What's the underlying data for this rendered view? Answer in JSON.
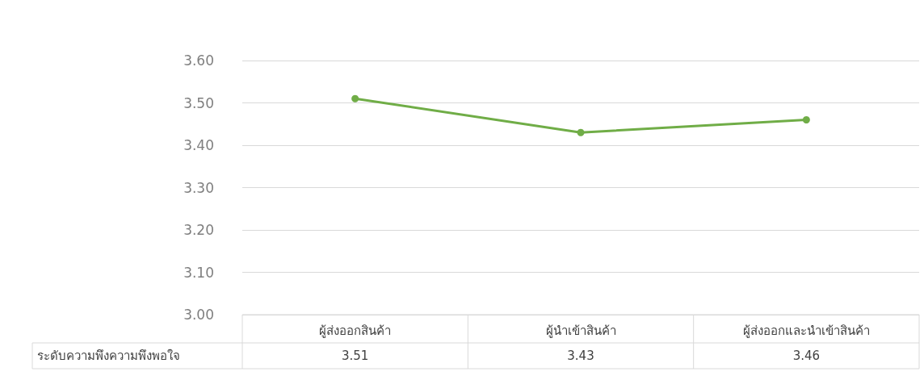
{
  "chart_data": {
    "type": "line",
    "categories": [
      "ผู้ส่งออกสินค้า",
      "ผู้นำเข้าสินค้า",
      "ผู้ส่งออกและนำเข้าสินค้า"
    ],
    "series": [
      {
        "name": "ระดับความพึงความพึงพอใจ",
        "color": "#70ad47",
        "values": [
          3.51,
          3.43,
          3.46
        ]
      }
    ],
    "ylim": [
      3.0,
      3.6
    ],
    "yticks": [
      {
        "value": 3.0,
        "label": "3.00"
      },
      {
        "value": 3.1,
        "label": "3.10"
      },
      {
        "value": 3.2,
        "label": "3.20"
      },
      {
        "value": 3.3,
        "label": "3.30"
      },
      {
        "value": 3.4,
        "label": "3.40"
      },
      {
        "value": 3.5,
        "label": "3.50"
      },
      {
        "value": 3.6,
        "label": "3.60"
      }
    ],
    "grid": "y",
    "marker": "circle",
    "data_labels": true
  }
}
